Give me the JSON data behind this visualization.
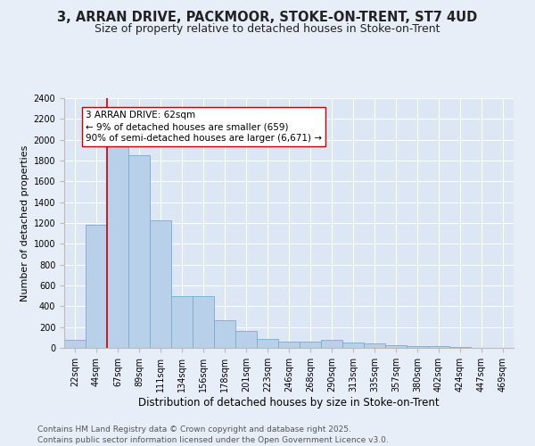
{
  "title1": "3, ARRAN DRIVE, PACKMOOR, STOKE-ON-TRENT, ST7 4UD",
  "title2": "Size of property relative to detached houses in Stoke-on-Trent",
  "xlabel": "Distribution of detached houses by size in Stoke-on-Trent",
  "ylabel": "Number of detached properties",
  "categories": [
    "22sqm",
    "44sqm",
    "67sqm",
    "89sqm",
    "111sqm",
    "134sqm",
    "156sqm",
    "178sqm",
    "201sqm",
    "223sqm",
    "246sqm",
    "268sqm",
    "290sqm",
    "313sqm",
    "335sqm",
    "357sqm",
    "380sqm",
    "402sqm",
    "424sqm",
    "447sqm",
    "469sqm"
  ],
  "values": [
    80,
    1180,
    1950,
    1850,
    1230,
    500,
    500,
    270,
    165,
    90,
    60,
    60,
    75,
    50,
    40,
    25,
    15,
    15,
    8,
    4,
    3
  ],
  "bar_color": "#b8d0ea",
  "bar_edge_color": "#7aaad0",
  "vline_color": "#cc0000",
  "vline_pos": 1.5,
  "annotation_text": "3 ARRAN DRIVE: 62sqm\n← 9% of detached houses are smaller (659)\n90% of semi-detached houses are larger (6,671) →",
  "annotation_box_facecolor": "#ffffff",
  "annotation_box_edgecolor": "#cc0000",
  "ylim": [
    0,
    2400
  ],
  "yticks": [
    0,
    200,
    400,
    600,
    800,
    1000,
    1200,
    1400,
    1600,
    1800,
    2000,
    2200,
    2400
  ],
  "bg_color": "#dce6f5",
  "grid_color": "#ffffff",
  "fig_bg_color": "#e8eef8",
  "footer1": "Contains HM Land Registry data © Crown copyright and database right 2025.",
  "footer2": "Contains public sector information licensed under the Open Government Licence v3.0.",
  "title1_fontsize": 10.5,
  "title2_fontsize": 9,
  "xlabel_fontsize": 8.5,
  "ylabel_fontsize": 8,
  "tick_fontsize": 7,
  "annotation_fontsize": 7.5,
  "footer_fontsize": 6.5
}
